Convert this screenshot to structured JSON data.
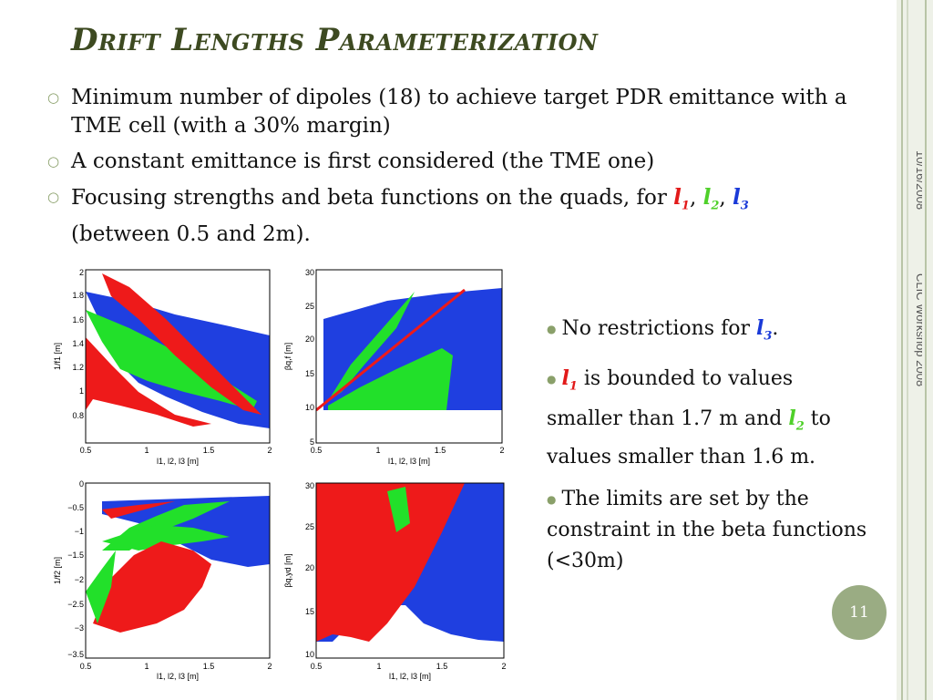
{
  "slide": {
    "title": "Drift Lengths Parameterization",
    "page_number": "11",
    "date": "10/16/2008",
    "footer": "CLIC Workshop 2008",
    "colors": {
      "title": "#3d4a21",
      "accent": "#9aac83",
      "l1": "#e21a1a",
      "l2": "#4fd02a",
      "l3": "#1a3ad8"
    }
  },
  "bullets": [
    {
      "text": "Minimum number of dipoles (18) to achieve target PDR emittance with a TME cell (with a 30% margin)"
    },
    {
      "text": "A constant emittance is first considered (the TME one)"
    },
    {
      "pre": "Focusing strengths and beta functions on the quads, for ",
      "sep1": ", ",
      "sep2": ", ",
      "post": "(between 0.5 and 2m)."
    }
  ],
  "symbols": {
    "l": "l",
    "s1": "1",
    "s2": "2",
    "s3": "3"
  },
  "right_bullets": {
    "b1_pre": "No restrictions for ",
    "b1_post": ".",
    "b2_mid": " is bounded to values smaller than 1.7 m and ",
    "b2_post": " to values smaller than 1.6 m.",
    "b3": "The limits are set by the constraint in the beta functions (<30m)"
  },
  "plots": [
    {
      "xlabel": "l1, l2, l3 [m]",
      "ylabel": "1/f1 [m]",
      "xticks": [
        "0.5",
        "1",
        "1.5",
        "2"
      ],
      "yticks": [
        "2",
        "1.8",
        "1.6",
        "1.4",
        "1.2",
        "1",
        "0.8"
      ]
    },
    {
      "xlabel": "l1, l2, l3 [m]",
      "ylabel": "βq,f [m]",
      "xticks": [
        "0.5",
        "1",
        "1.5",
        "2"
      ],
      "yticks": [
        "30",
        "25",
        "20",
        "15",
        "10",
        "5"
      ]
    },
    {
      "xlabel": "l1, l2, l3 [m]",
      "ylabel": "1/f2 [m]",
      "xticks": [
        "0.5",
        "1",
        "1.5",
        "2"
      ],
      "yticks": [
        "0",
        "−0.5",
        "−1",
        "−1.5",
        "−2",
        "−2.5",
        "−3",
        "−3.5"
      ]
    },
    {
      "xlabel": "l1, l2, l3 [m]",
      "ylabel": "βq,yd [m]",
      "xticks": [
        "0.5",
        "1",
        "1.5",
        "2"
      ],
      "yticks": [
        "30",
        "25",
        "20",
        "15",
        "10"
      ]
    }
  ]
}
